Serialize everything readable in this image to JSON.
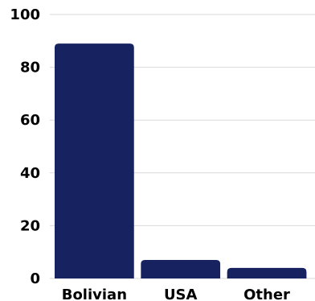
{
  "chart_data": {
    "type": "bar",
    "title": "",
    "xlabel": "",
    "ylabel": "",
    "categories": [
      "Bolivian",
      "USA",
      "Other"
    ],
    "values": [
      89,
      7,
      4
    ],
    "ylim": [
      0,
      100
    ],
    "yticks": [
      "0",
      "20",
      "40",
      "60",
      "80",
      "100"
    ],
    "grid": true,
    "legend": "none",
    "bar_color": "#172260",
    "grid_color": "#d9d9d9"
  }
}
